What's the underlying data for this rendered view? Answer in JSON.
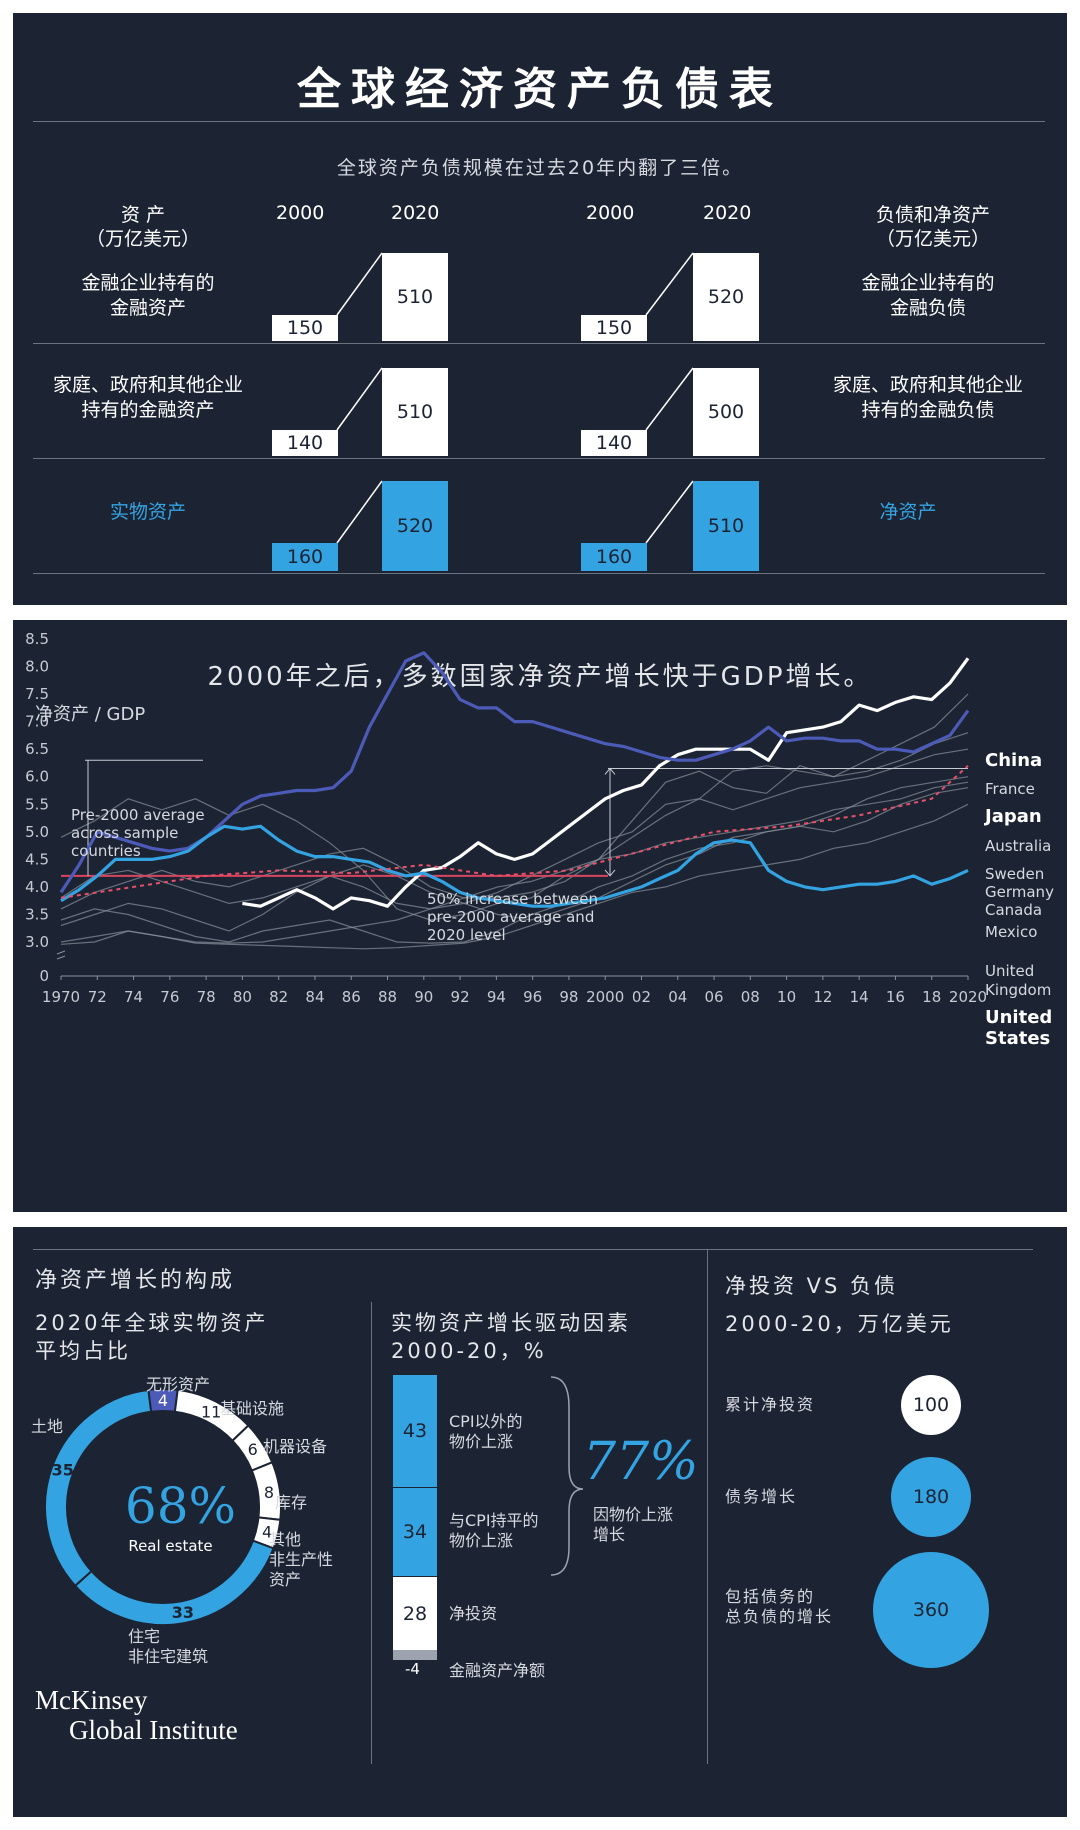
{
  "panel1": {
    "title": "全球经济资产负债表",
    "subtitle": "全球资产负债规模在过去20年内翻了三倍。",
    "assets_header": [
      "资  产",
      "（万亿美元）"
    ],
    "liab_header": [
      "负债和净资产",
      "（万亿美元）"
    ],
    "years": [
      "2000",
      "2020"
    ],
    "rows": [
      {
        "left_label": [
          "金融企业持有的",
          "金融资产"
        ],
        "asset_2000": "150",
        "asset_2020": "510",
        "liab_2000": "150",
        "liab_2020": "520",
        "right_label": [
          "金融企业持有的",
          "金融负债"
        ]
      },
      {
        "left_label": [
          "家庭、政府和其他企业",
          "持有的金融资产"
        ],
        "asset_2000": "140",
        "asset_2020": "510",
        "liab_2000": "140",
        "liab_2020": "500",
        "right_label": [
          "家庭、政府和其他企业",
          "持有的金融负债"
        ]
      },
      {
        "left_label": [
          "实物资产"
        ],
        "asset_2000": "160",
        "asset_2020": "520",
        "liab_2000": "160",
        "liab_2020": "510",
        "right_label": [
          "净资产"
        ]
      }
    ]
  },
  "chart_data": {
    "type": "line",
    "title": "2000年之后，多数国家净资产增长快于GDP增长。",
    "ylabel": "净资产 / GDP",
    "ylim": [
      0,
      8.5
    ],
    "yticks": [
      "0",
      "3.0",
      "3.5",
      "4.0",
      "4.5",
      "5.0",
      "5.5",
      "6.0",
      "6.5",
      "7.0",
      "7.5",
      "8.0",
      "8.5"
    ],
    "xticks": [
      "1970",
      "72",
      "74",
      "76",
      "78",
      "80",
      "82",
      "84",
      "86",
      "88",
      "90",
      "92",
      "94",
      "96",
      "98",
      "2000",
      "02",
      "04",
      "06",
      "08",
      "10",
      "12",
      "14",
      "16",
      "18",
      "2020"
    ],
    "annotation_pre2000": [
      "Pre-2000 average",
      "across sample",
      "countries"
    ],
    "annotation_increase": [
      "50% increase between",
      "pre-2000 average and",
      "2020 level"
    ],
    "pre2000_average": 4.2,
    "level_2020": 6.15,
    "series": [
      {
        "name": "China",
        "x": [
          1980,
          1981,
          1982,
          1983,
          1984,
          1985,
          1986,
          1987,
          1988,
          1989,
          1990,
          1991,
          1992,
          1993,
          1994,
          1995,
          1996,
          1997,
          1998,
          1999,
          2000,
          2001,
          2002,
          2003,
          2004,
          2005,
          2006,
          2007,
          2008,
          2009,
          2010,
          2011,
          2012,
          2013,
          2014,
          2015,
          2016,
          2017,
          2018,
          2019,
          2020
        ],
        "values": [
          3.7,
          3.65,
          3.8,
          3.95,
          3.8,
          3.6,
          3.8,
          3.75,
          3.65,
          4.0,
          4.3,
          4.35,
          4.55,
          4.8,
          4.6,
          4.5,
          4.6,
          4.85,
          5.1,
          5.35,
          5.6,
          5.75,
          5.85,
          6.2,
          6.4,
          6.5,
          6.5,
          6.5,
          6.5,
          6.3,
          6.8,
          6.85,
          6.9,
          7.0,
          7.3,
          7.2,
          7.35,
          7.45,
          7.4,
          7.7,
          8.15
        ]
      },
      {
        "name": "Japan",
        "x": [
          1970,
          1971,
          1972,
          1973,
          1974,
          1975,
          1976,
          1977,
          1978,
          1979,
          1980,
          1981,
          1982,
          1983,
          1984,
          1985,
          1986,
          1987,
          1988,
          1989,
          1990,
          1991,
          1992,
          1993,
          1994,
          1995,
          1996,
          1997,
          1998,
          1999,
          2000,
          2001,
          2002,
          2003,
          2004,
          2005,
          2006,
          2007,
          2008,
          2009,
          2010,
          2011,
          2012,
          2013,
          2014,
          2015,
          2016,
          2017,
          2018,
          2019,
          2020
        ],
        "values": [
          3.9,
          4.4,
          5.0,
          4.9,
          4.8,
          4.7,
          4.65,
          4.7,
          4.9,
          5.2,
          5.5,
          5.65,
          5.7,
          5.75,
          5.75,
          5.8,
          6.1,
          6.9,
          7.5,
          8.1,
          8.25,
          7.9,
          7.4,
          7.25,
          7.25,
          7.0,
          7.0,
          6.9,
          6.8,
          6.7,
          6.6,
          6.55,
          6.45,
          6.35,
          6.3,
          6.3,
          6.4,
          6.5,
          6.65,
          6.9,
          6.65,
          6.7,
          6.7,
          6.65,
          6.65,
          6.5,
          6.5,
          6.45,
          6.6,
          6.75,
          7.2
        ]
      },
      {
        "name": "United States",
        "x": [
          1970,
          1971,
          1972,
          1973,
          1974,
          1975,
          1976,
          1977,
          1978,
          1979,
          1980,
          1981,
          1982,
          1983,
          1984,
          1985,
          1986,
          1987,
          1988,
          1989,
          1990,
          1991,
          1992,
          1993,
          1994,
          1995,
          1996,
          1997,
          1998,
          1999,
          2000,
          2001,
          2002,
          2003,
          2004,
          2005,
          2006,
          2007,
          2008,
          2009,
          2010,
          2011,
          2012,
          2013,
          2014,
          2015,
          2016,
          2017,
          2018,
          2019,
          2020
        ],
        "values": [
          3.75,
          3.95,
          4.2,
          4.5,
          4.5,
          4.5,
          4.55,
          4.65,
          4.9,
          5.1,
          5.05,
          5.1,
          4.85,
          4.65,
          4.55,
          4.55,
          4.5,
          4.45,
          4.3,
          4.2,
          4.25,
          4.1,
          3.9,
          3.8,
          3.75,
          3.7,
          3.65,
          3.65,
          3.7,
          3.75,
          3.8,
          3.9,
          4.0,
          4.15,
          4.3,
          4.6,
          4.8,
          4.85,
          4.8,
          4.3,
          4.1,
          4.0,
          3.95,
          4.0,
          4.05,
          4.05,
          4.1,
          4.2,
          4.05,
          4.15,
          4.3
        ]
      },
      {
        "name": "Average",
        "x": [
          1970,
          1974,
          1978,
          1982,
          1986,
          1990,
          1994,
          1998,
          2002,
          2006,
          2010,
          2014,
          2018,
          2020
        ],
        "values": [
          3.8,
          4.0,
          4.2,
          4.3,
          4.25,
          4.4,
          4.2,
          4.3,
          4.65,
          5.0,
          5.1,
          5.3,
          5.6,
          6.2
        ]
      }
    ],
    "countries": [
      "China",
      "France",
      "Japan",
      "Australia",
      "Sweden",
      "Germany",
      "Canada",
      "Mexico",
      "United Kingdom",
      "United States"
    ],
    "colors": {
      "china": "#ffffff",
      "japan": "#4d5bb8",
      "us": "#34a3e2",
      "avg": "#e8506a",
      "other": "#8a919c",
      "pre2000": "#d9445f"
    }
  },
  "panel3": {
    "section1_title": "净资产增长的构成",
    "pie": {
      "title": [
        "2020年全球实物资产",
        "平均占比"
      ],
      "center_value": "68%",
      "center_label": "Real estate",
      "segments": [
        {
          "label": "无形资产",
          "value": 4
        },
        {
          "label": "基础设施",
          "value": 11
        },
        {
          "label": "机器设备",
          "value": 6
        },
        {
          "label": "库存",
          "value": 8
        },
        {
          "label": "其他非生产性资产",
          "value": 4
        },
        {
          "label": "住宅",
          "value": 33
        },
        {
          "label": "非住宅建筑",
          "value": 35
        }
      ],
      "label_land": "土地",
      "label_other": [
        "其他",
        "非生产性",
        "资产"
      ],
      "label_res": [
        "住宅",
        "非住宅建筑"
      ]
    },
    "drivers": {
      "title": [
        "实物资产增长驱动因素",
        "2000-20，%"
      ],
      "items": [
        {
          "value": "43",
          "label": [
            "CPI以外的",
            "物价上涨"
          ]
        },
        {
          "value": "34",
          "label": [
            "与CPI持平的",
            "物价上涨"
          ]
        },
        {
          "value": "28",
          "label": [
            "净投资"
          ]
        },
        {
          "value": "-4",
          "label": [
            "金融资产净额"
          ]
        }
      ],
      "total": "77%",
      "total_label": [
        "因物价上涨",
        "增长"
      ]
    },
    "invest": {
      "title": [
        "净投资 VS 负债",
        "2000-20，万亿美元"
      ],
      "items": [
        {
          "label": [
            "累计净投资"
          ],
          "value": "100"
        },
        {
          "label": [
            "债务增长"
          ],
          "value": "180"
        },
        {
          "label": [
            "包括债务的",
            "总负债的增长"
          ],
          "value": "360"
        }
      ]
    },
    "logo": [
      "McKinsey",
      "Global Institute"
    ]
  }
}
